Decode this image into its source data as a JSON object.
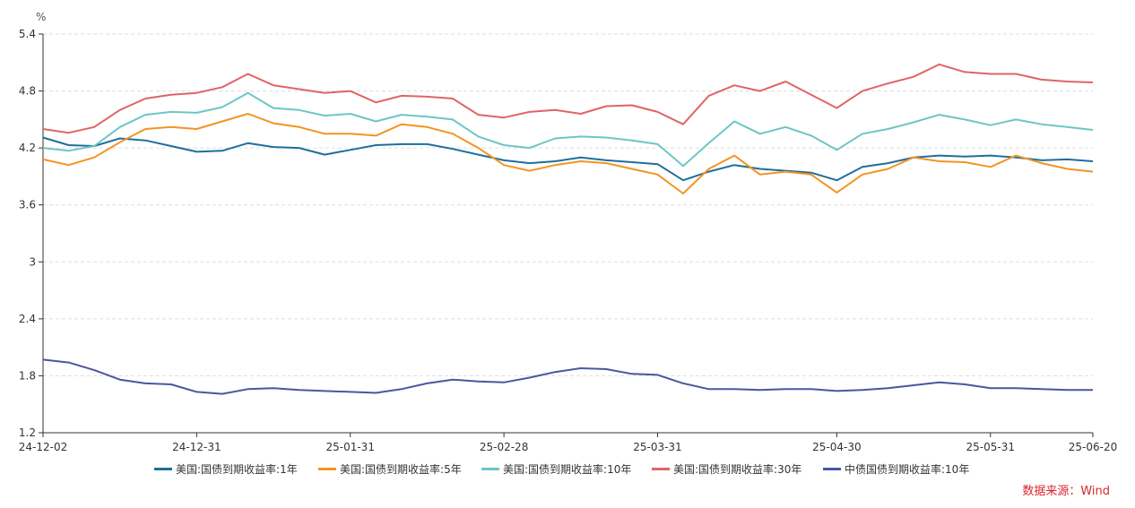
{
  "chart_data": {
    "type": "line",
    "title": "",
    "ylabel": "%",
    "xlabel": "",
    "ylim": [
      1.2,
      5.4
    ],
    "y_ticks": [
      "5.4",
      "4.8",
      "4.2",
      "3.6",
      "3",
      "2.4",
      "1.8",
      "1.2"
    ],
    "x_ticks": [
      "24-12-02",
      "24-12-31",
      "25-01-31",
      "25-02-28",
      "25-03-31",
      "25-04-30",
      "25-05-31",
      "25-06-20"
    ],
    "x": [
      "24-12-02",
      "24-12-06",
      "24-12-11",
      "24-12-16",
      "24-12-20",
      "24-12-25",
      "24-12-31",
      "25-01-06",
      "25-01-10",
      "25-01-15",
      "25-01-20",
      "25-01-25",
      "25-01-31",
      "25-02-05",
      "25-02-10",
      "25-02-15",
      "25-02-20",
      "25-02-25",
      "25-02-28",
      "25-03-05",
      "25-03-10",
      "25-03-15",
      "25-03-20",
      "25-03-25",
      "25-03-31",
      "25-04-04",
      "25-04-08",
      "25-04-11",
      "25-04-15",
      "25-04-20",
      "25-04-25",
      "25-04-30",
      "25-05-05",
      "25-05-10",
      "25-05-15",
      "25-05-20",
      "25-05-25",
      "25-05-31",
      "25-06-05",
      "25-06-10",
      "25-06-15",
      "25-06-20"
    ],
    "grid": true,
    "legend_position": "bottom",
    "series": [
      {
        "name": "美国:国债到期收益率:1年",
        "color": "#1f6e9c",
        "values": [
          4.31,
          4.23,
          4.22,
          4.3,
          4.28,
          4.22,
          4.16,
          4.17,
          4.25,
          4.21,
          4.2,
          4.13,
          4.18,
          4.23,
          4.24,
          4.24,
          4.19,
          4.13,
          4.07,
          4.04,
          4.06,
          4.1,
          4.07,
          4.05,
          4.03,
          3.86,
          3.95,
          4.02,
          3.98,
          3.96,
          3.94,
          3.86,
          4.0,
          4.04,
          4.1,
          4.12,
          4.11,
          4.12,
          4.1,
          4.07,
          4.08,
          4.06
        ]
      },
      {
        "name": "美国:国债到期收益率:5年",
        "color": "#f39423",
        "values": [
          4.08,
          4.02,
          4.1,
          4.26,
          4.4,
          4.42,
          4.4,
          4.48,
          4.56,
          4.46,
          4.42,
          4.35,
          4.35,
          4.33,
          4.45,
          4.42,
          4.35,
          4.2,
          4.02,
          3.96,
          4.02,
          4.06,
          4.04,
          3.98,
          3.92,
          3.72,
          3.98,
          4.12,
          3.92,
          3.95,
          3.92,
          3.73,
          3.92,
          3.98,
          4.1,
          4.06,
          4.05,
          4.0,
          4.12,
          4.04,
          3.98,
          3.95
        ]
      },
      {
        "name": "美国:国债到期收益率:10年",
        "color": "#6cc6c5",
        "values": [
          4.2,
          4.17,
          4.22,
          4.42,
          4.55,
          4.58,
          4.57,
          4.63,
          4.78,
          4.62,
          4.6,
          4.54,
          4.56,
          4.48,
          4.55,
          4.53,
          4.5,
          4.32,
          4.23,
          4.2,
          4.3,
          4.32,
          4.31,
          4.28,
          4.24,
          4.01,
          4.25,
          4.48,
          4.35,
          4.42,
          4.33,
          4.18,
          4.35,
          4.4,
          4.47,
          4.55,
          4.5,
          4.44,
          4.5,
          4.45,
          4.42,
          4.39
        ]
      },
      {
        "name": "美国:国债到期收益率:30年",
        "color": "#e06466",
        "values": [
          4.4,
          4.36,
          4.42,
          4.6,
          4.72,
          4.76,
          4.78,
          4.84,
          4.98,
          4.86,
          4.82,
          4.78,
          4.8,
          4.68,
          4.75,
          4.74,
          4.72,
          4.55,
          4.52,
          4.58,
          4.6,
          4.56,
          4.64,
          4.65,
          4.58,
          4.45,
          4.75,
          4.86,
          4.8,
          4.9,
          4.76,
          4.62,
          4.8,
          4.88,
          4.95,
          5.08,
          5.0,
          4.98,
          4.98,
          4.92,
          4.9,
          4.89
        ]
      },
      {
        "name": "中债国债到期收益率:10年",
        "color": "#4a569d",
        "values": [
          1.97,
          1.94,
          1.86,
          1.76,
          1.72,
          1.71,
          1.63,
          1.61,
          1.66,
          1.67,
          1.65,
          1.64,
          1.63,
          1.62,
          1.66,
          1.72,
          1.76,
          1.74,
          1.73,
          1.78,
          1.84,
          1.88,
          1.87,
          1.82,
          1.81,
          1.72,
          1.66,
          1.66,
          1.65,
          1.66,
          1.66,
          1.64,
          1.65,
          1.67,
          1.7,
          1.73,
          1.71,
          1.67,
          1.67,
          1.66,
          1.65,
          1.65
        ]
      }
    ],
    "source": "数据来源：Wind",
    "source_color": "#d9262c"
  }
}
